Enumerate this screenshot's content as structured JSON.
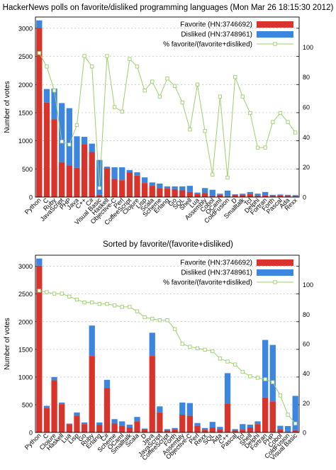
{
  "colors": {
    "favorite": "#d9342b",
    "disliked": "#3d86e0",
    "pct": "#9ccf6e",
    "axis": "#000000",
    "grid": "#bbbbbb"
  },
  "legend": {
    "favorite": "Favorite (HN:3746692)",
    "disliked": "Disliked (HN:3748961)",
    "pct": "% favorite/(favorite+disliked)"
  },
  "chart_data": [
    {
      "type": "bar",
      "title": "HackerNews polls on favorite/disliked programming languages (Mon Mar 26 18:15:30 2012)",
      "ylabel": "Number of votes",
      "ylim": [
        0,
        3200
      ],
      "y2lim": [
        0,
        120
      ],
      "yticks": [
        0,
        500,
        1000,
        1500,
        2000,
        2500,
        3000
      ],
      "y2ticks": [
        0,
        20,
        40,
        60,
        80,
        100
      ],
      "legend_position": "top-right",
      "grid": "dashed horizontal",
      "categories": [
        "Python",
        "C",
        "Ruby",
        "JavaScript",
        "PHP",
        "Java",
        "C++",
        "C#",
        "Visual Basic",
        "Haskell",
        "Objective-C",
        "Perl",
        "CoffeeScript",
        "Clojure",
        "Lisp",
        "Scala",
        "Scheme",
        "Erlang",
        "Go",
        "SQL",
        "Shell",
        "Lua",
        "Assembly",
        "Cobol",
        "OCaml",
        "ColdFusion",
        "D",
        "Smalltalk",
        "Tcl",
        "Delphi",
        "Fortran",
        "Forth",
        "Pascal",
        "Ada",
        "Rexx"
      ],
      "series": [
        {
          "name": "Favorite (HN:3746692)",
          "values": [
            3010,
            1680,
            1380,
            620,
            560,
            520,
            940,
            800,
            40,
            510,
            320,
            300,
            440,
            380,
            250,
            200,
            160,
            150,
            140,
            120,
            90,
            60,
            70,
            20,
            40,
            15,
            40,
            40,
            50,
            20,
            30,
            20,
            25,
            20,
            15
          ]
        },
        {
          "name": "Disliked (HN:3748961)",
          "values": [
            130,
            240,
            550,
            1050,
            1020,
            560,
            130,
            150,
            620,
            30,
            210,
            230,
            40,
            60,
            100,
            60,
            80,
            40,
            50,
            70,
            110,
            20,
            90,
            110,
            20,
            100,
            10,
            20,
            40,
            40,
            60,
            20,
            20,
            20,
            20
          ]
        },
        {
          "name": "% favorite/(favorite+disliked)",
          "values": [
            96,
            87,
            71,
            37,
            35,
            48,
            94,
            87,
            6,
            94,
            60,
            57,
            92,
            87,
            71,
            77,
            67,
            79,
            74,
            63,
            45,
            75,
            44,
            15,
            67,
            13,
            80,
            67,
            56,
            33,
            33,
            50,
            56,
            50,
            43
          ]
        }
      ]
    },
    {
      "type": "bar",
      "title": "Sorted by favorite/(favorite+disliked)",
      "ylabel": "Number of votes",
      "ylim": [
        0,
        3200
      ],
      "y2lim": [
        0,
        120
      ],
      "yticks": [
        0,
        500,
        1000,
        1500,
        2000,
        2500,
        3000
      ],
      "y2ticks": [
        0,
        20,
        40,
        60,
        80,
        100
      ],
      "legend_position": "top-right",
      "grid": "dashed horizontal",
      "categories": [
        "Python",
        "C",
        "Clojure",
        "Haskell",
        "Lua",
        "Lisp",
        "Go",
        "Ruby",
        "Erlang",
        "C#",
        "Scheme",
        "OCaml",
        "Smalltalk",
        "Scala",
        "D",
        "Java",
        "JavaScript",
        "CoffeeScript",
        "Forth",
        "Assembly",
        "Objective-C",
        "Perl",
        "Rexx",
        "SQL",
        "Ada",
        "C++",
        "Pascal",
        "Tcl",
        "Shell",
        "Delphi",
        "Fortran",
        "PHP",
        "Cobol",
        "ColdFusion",
        "Visual Basic"
      ],
      "series": [
        {
          "name": "Favorite (HN:3746692)",
          "values": [
            3010,
            440,
            940,
            510,
            150,
            300,
            150,
            1380,
            140,
            800,
            160,
            120,
            90,
            200,
            60,
            1380,
            360,
            40,
            60,
            320,
            300,
            120,
            50,
            90,
            60,
            520,
            40,
            50,
            90,
            150,
            630,
            560,
            60,
            15,
            40
          ]
        },
        {
          "name": "Disliked (HN:3748961)",
          "values": [
            130,
            40,
            60,
            30,
            10,
            60,
            30,
            550,
            40,
            150,
            80,
            80,
            50,
            80,
            10,
            420,
            110,
            20,
            20,
            220,
            230,
            50,
            30,
            100,
            40,
            550,
            20,
            100,
            50,
            50,
            1040,
            1020,
            60,
            100,
            620
          ]
        },
        {
          "name": "% favorite/(favorite+disliked)",
          "values": [
            96,
            95,
            94,
            94,
            92,
            90,
            88,
            88,
            87,
            87,
            86,
            85,
            85,
            82,
            78,
            77,
            76,
            76,
            70,
            60,
            58,
            57,
            56,
            55,
            50,
            48,
            46,
            41,
            38,
            37,
            36,
            34,
            25,
            12,
            6
          ]
        }
      ]
    }
  ]
}
